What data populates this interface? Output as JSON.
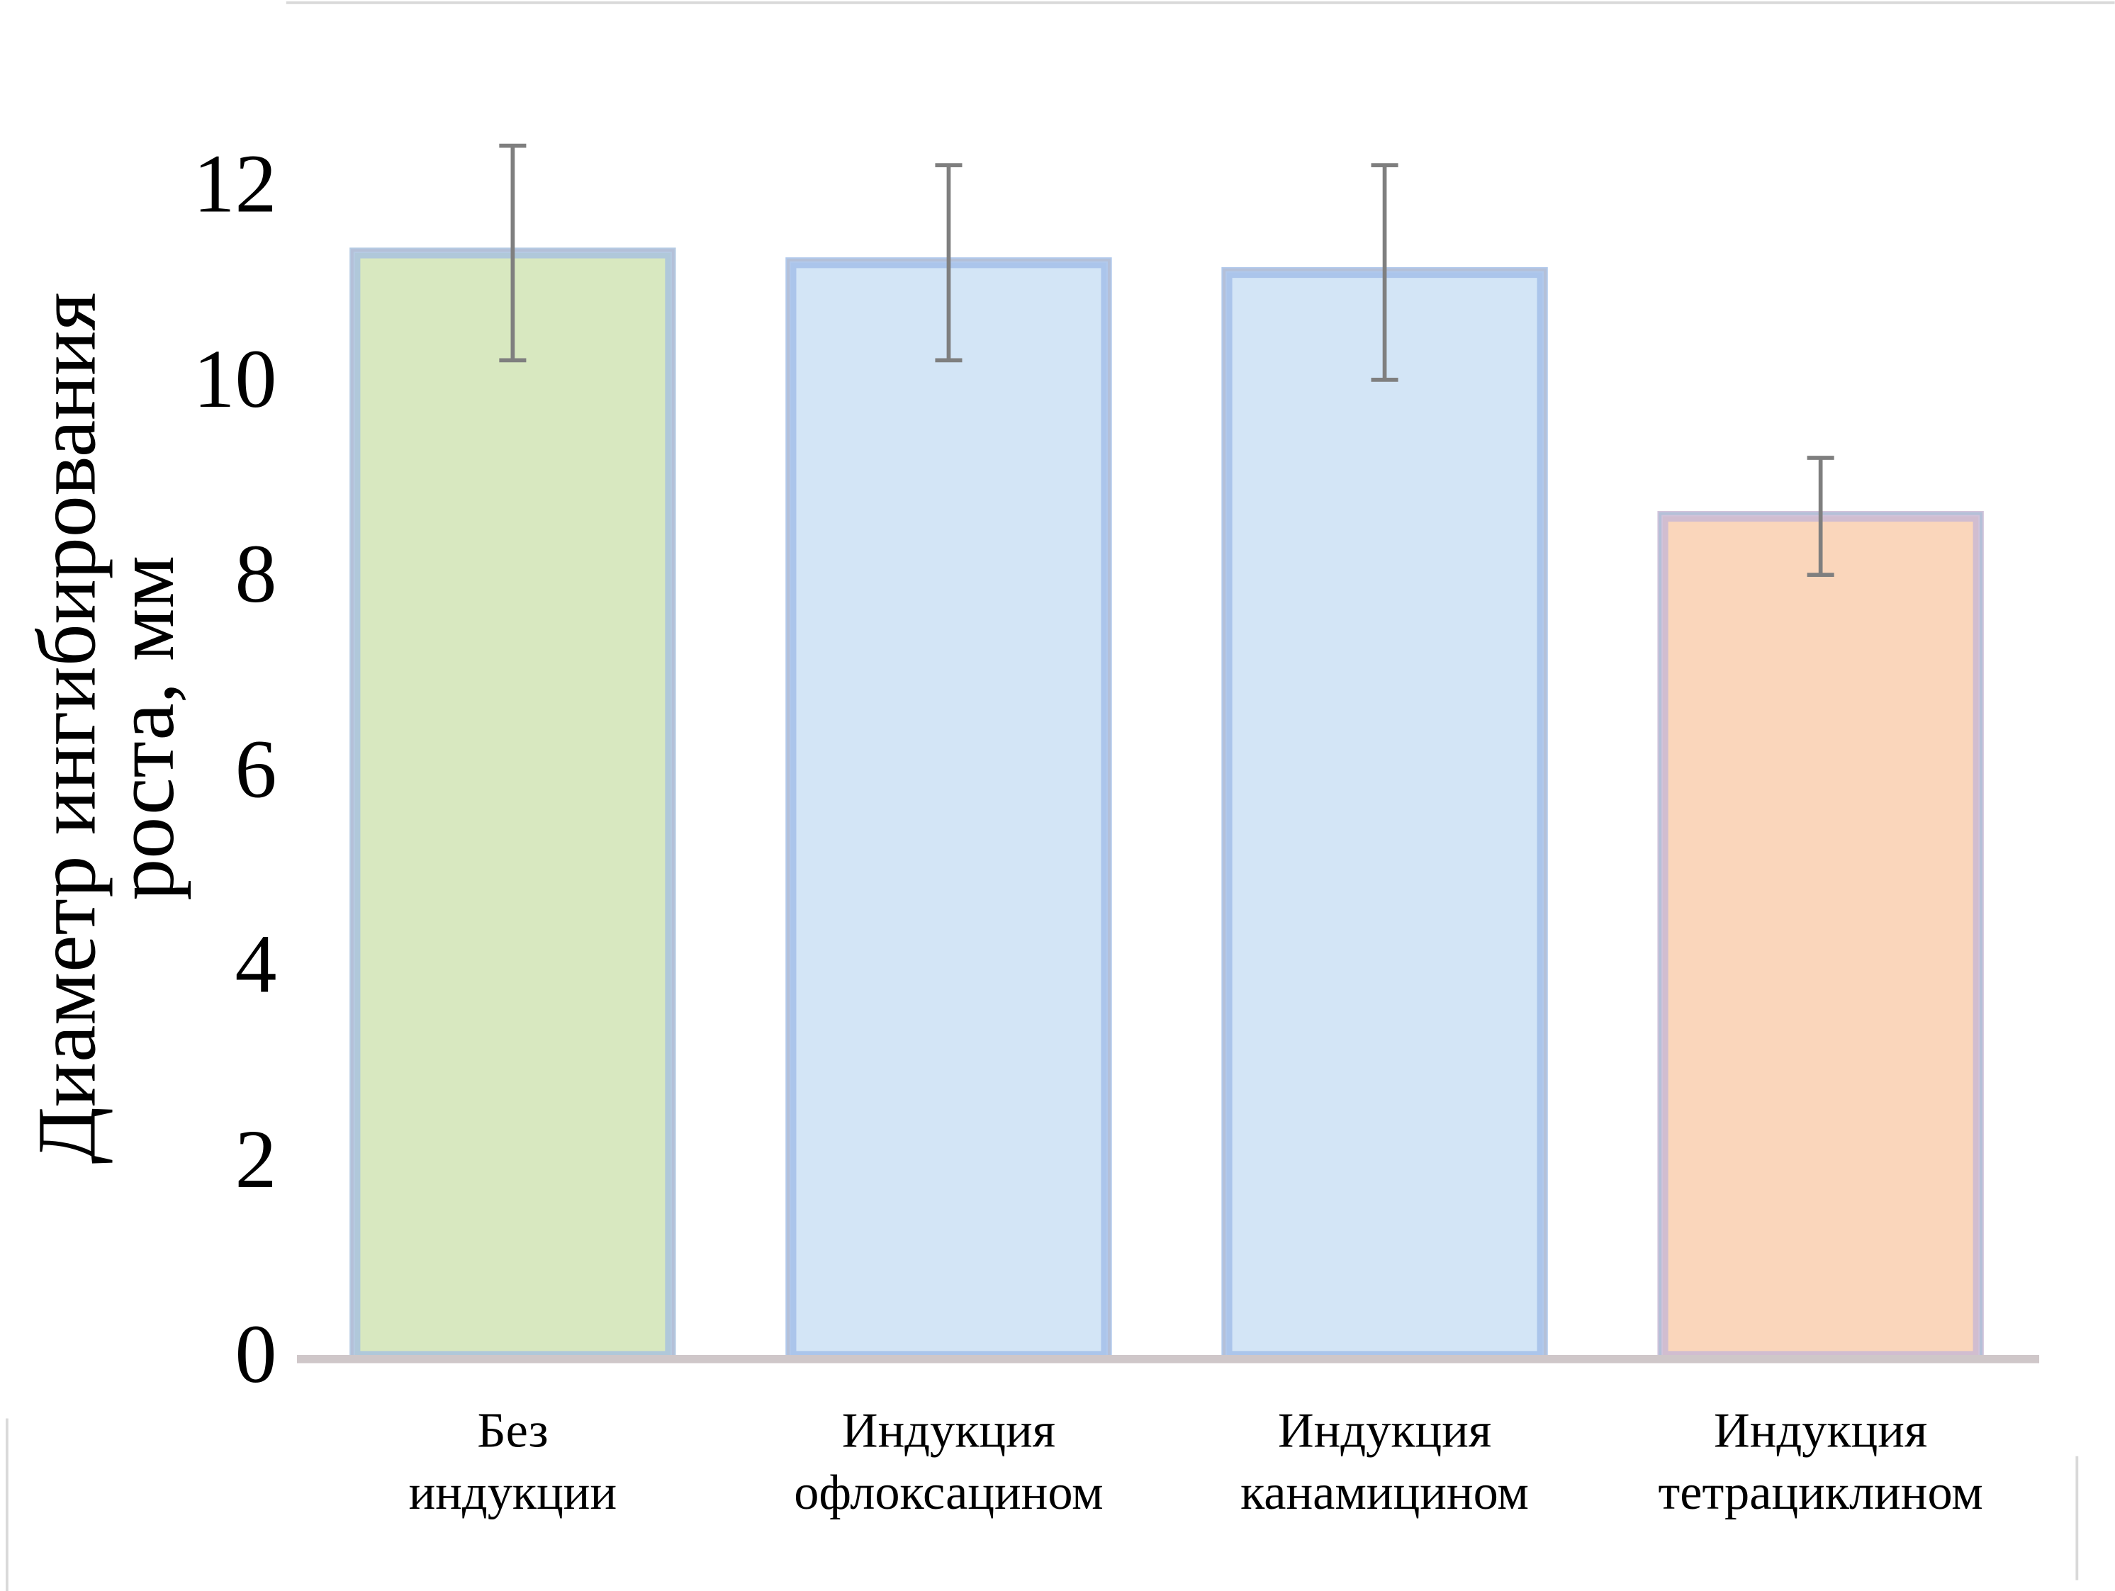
{
  "chart_data": {
    "type": "bar",
    "title": "",
    "xlabel": "",
    "ylabel": [
      "Диаметр ингибирования",
      "роста, мм"
    ],
    "ylim": [
      0,
      12
    ],
    "yticks": [
      0,
      2,
      4,
      6,
      8,
      10,
      12
    ],
    "grid": false,
    "categories": [
      [
        "Без",
        "индукции"
      ],
      [
        "Индукция",
        "офлоксацином"
      ],
      [
        "Индукция",
        "канамицином"
      ],
      [
        "Индукция",
        "тетрациклином"
      ]
    ],
    "values": [
      11.3,
      11.2,
      11.1,
      8.6
    ],
    "errors": [
      1.1,
      1.0,
      1.1,
      0.6
    ],
    "colors": {
      "fills": [
        "#d8e8c0",
        "#d3e5f6",
        "#d3e5f6",
        "#fad6bb"
      ],
      "edges": [
        "#a9c2de",
        "#a3bfe9",
        "#a3bfe9",
        "#c9b9d3"
      ],
      "axis": "#cfc7c9",
      "error_bar": "#7f7f7f"
    }
  }
}
